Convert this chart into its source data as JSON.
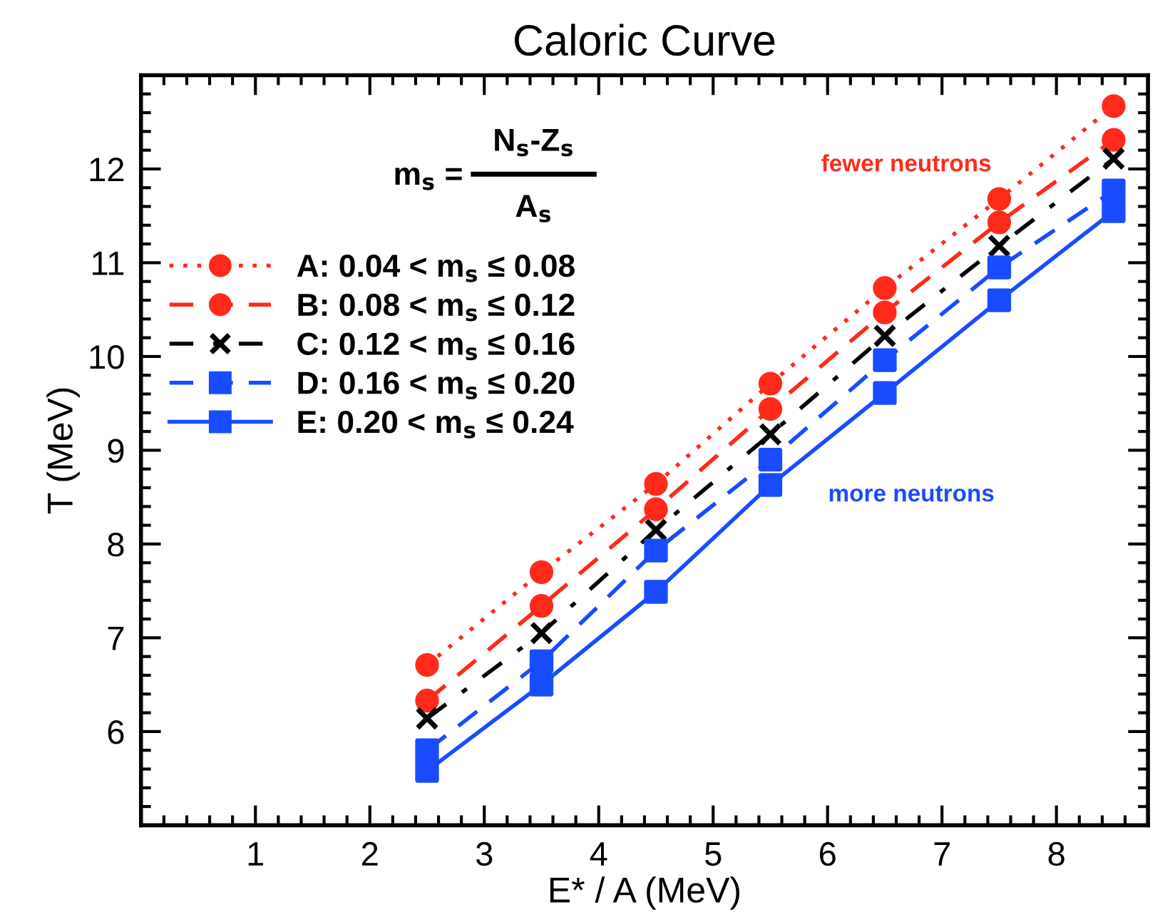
{
  "chart_data": {
    "type": "line",
    "title": "Caloric Curve",
    "xlabel": "E* / A (MeV)",
    "ylabel": "T (MeV)",
    "x": [
      2.5,
      3.5,
      4.5,
      5.5,
      6.5,
      7.5,
      8.5
    ],
    "xlim": [
      0,
      8.8
    ],
    "xticks": [
      1,
      2,
      3,
      4,
      5,
      6,
      7,
      8
    ],
    "ylim": [
      5,
      13
    ],
    "yticks": [
      6,
      7,
      8,
      9,
      10,
      11,
      12
    ],
    "grid": false,
    "legend": "top left",
    "series": [
      {
        "name": "A: 0.04 < m$_{s}$ ≤ 0.08",
        "color": "#ff2a1a",
        "marker": "circle",
        "line_style": "dotted",
        "values": [
          6.71,
          7.7,
          8.64,
          9.71,
          10.73,
          11.68,
          12.67
        ]
      },
      {
        "name": "B: 0.08 < m$_{s}$ ≤ 0.12",
        "color": "#ff2a1a",
        "marker": "circle",
        "line_style": "dashed",
        "values": [
          6.33,
          7.34,
          8.37,
          9.44,
          10.47,
          11.43,
          12.31
        ]
      },
      {
        "name": "C: 0.12 < m$_{s}$ ≤ 0.16",
        "color": "#000000",
        "marker": "cross",
        "line_style": "dashdot",
        "values": [
          6.14,
          7.05,
          8.15,
          9.17,
          10.22,
          11.18,
          12.11
        ]
      },
      {
        "name": "D: 0.16 < m$_{s}$ ≤ 0.20",
        "color": "#1a4cff",
        "marker": "square",
        "line_style": "dashed",
        "values": [
          5.8,
          6.75,
          7.93,
          8.9,
          9.96,
          10.95,
          11.77
        ]
      },
      {
        "name": "E: 0.20 < m$_{s}$ ≤ 0.24",
        "color": "#1a4cff",
        "marker": "square",
        "line_style": "solid",
        "values": [
          5.58,
          6.5,
          7.49,
          8.63,
          9.61,
          10.6,
          11.55
        ]
      }
    ],
    "annotations": [
      "m$_{s}$ =",
      "N$_{s}$-Z$_{s}$",
      "A$_{s}$",
      "fewer neutrons",
      "more neutrons"
    ]
  }
}
